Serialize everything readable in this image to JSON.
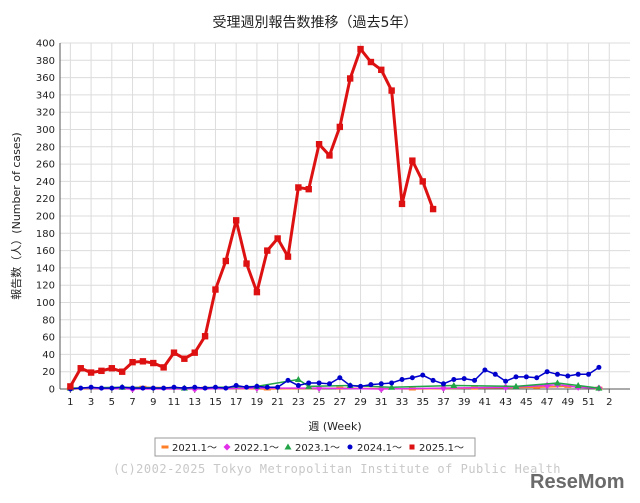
{
  "chart_data": {
    "type": "line",
    "title": "受理週別報告数推移（過去5年）",
    "xlabel": "週 (Week)",
    "ylabel": "報告数（人）(Number of cases)",
    "ylim": [
      0,
      400
    ],
    "y_ticks": [
      0,
      20,
      40,
      60,
      80,
      100,
      120,
      140,
      160,
      180,
      200,
      220,
      240,
      260,
      280,
      300,
      320,
      340,
      360,
      380,
      400
    ],
    "x_tick_labels": [
      "1",
      "3",
      "5",
      "7",
      "9",
      "11",
      "13",
      "15",
      "17",
      "19",
      "21",
      "23",
      "25",
      "27",
      "29",
      "31",
      "33",
      "35",
      "37",
      "39",
      "41",
      "43",
      "45",
      "47",
      "49",
      "51",
      "2"
    ],
    "grid": true,
    "legend_position": "bottom",
    "series": [
      {
        "name": "2021.1～",
        "color": "#ff7f27",
        "marker": "dash",
        "x": [
          1,
          8,
          14,
          20,
          27,
          34,
          40,
          46,
          49,
          52
        ],
        "y": [
          0,
          2,
          1,
          0,
          1,
          0,
          1,
          2,
          3,
          1
        ]
      },
      {
        "name": "2022.1～",
        "color": "#e22fe8",
        "marker": "diamond",
        "x": [
          1,
          7,
          13,
          19,
          25,
          31,
          37,
          43,
          47,
          48,
          50,
          52
        ],
        "y": [
          1,
          0,
          0,
          1,
          1,
          0,
          1,
          2,
          4,
          5,
          2,
          1
        ]
      },
      {
        "name": "2023.1～",
        "color": "#22a447",
        "marker": "triangle",
        "x": [
          1,
          6,
          12,
          19,
          23,
          24,
          28,
          32,
          38,
          44,
          48,
          50,
          52
        ],
        "y": [
          1,
          2,
          1,
          3,
          11,
          3,
          4,
          2,
          4,
          3,
          7,
          4,
          1
        ]
      },
      {
        "name": "2024.1～",
        "color": "#0000cc",
        "marker": "circle",
        "x": [
          1,
          2,
          3,
          4,
          5,
          6,
          7,
          8,
          9,
          10,
          11,
          12,
          13,
          14,
          15,
          16,
          17,
          18,
          19,
          20,
          21,
          22,
          23,
          24,
          25,
          26,
          27,
          28,
          29,
          30,
          31,
          32,
          33,
          34,
          35,
          36,
          37,
          38,
          39,
          40,
          41,
          42,
          43,
          44,
          45,
          46,
          47,
          48,
          49,
          50,
          51,
          52
        ],
        "y": [
          0,
          1,
          2,
          1,
          1,
          2,
          1,
          1,
          1,
          1,
          2,
          1,
          2,
          1,
          2,
          1,
          4,
          2,
          3,
          2,
          2,
          10,
          4,
          7,
          7,
          6,
          13,
          4,
          3,
          5,
          6,
          7,
          11,
          13,
          16,
          10,
          6,
          11,
          12,
          10,
          22,
          17,
          9,
          14,
          14,
          13,
          20,
          17,
          15,
          17,
          17,
          25
        ]
      },
      {
        "name": "2025.1～",
        "color": "#dd1111",
        "marker": "square",
        "x": [
          1,
          2,
          3,
          4,
          5,
          6,
          7,
          8,
          9,
          10,
          11,
          12,
          13,
          14,
          15,
          16,
          17,
          18,
          19,
          20,
          21,
          22,
          23,
          24,
          25,
          26,
          27,
          28,
          29,
          30,
          31,
          32,
          33,
          34,
          35,
          36
        ],
        "y": [
          3,
          24,
          19,
          21,
          24,
          20,
          31,
          32,
          30,
          25,
          42,
          35,
          42,
          61,
          115,
          148,
          195,
          145,
          112,
          160,
          174,
          153,
          233,
          231,
          283,
          270,
          303,
          359,
          393,
          378,
          369,
          345,
          214,
          264,
          240,
          208
        ]
      }
    ]
  },
  "footer": {
    "copyright": "(C)2002-2025 Tokyo Metropolitan Institute of Public Health",
    "brand": "ReseMom"
  }
}
